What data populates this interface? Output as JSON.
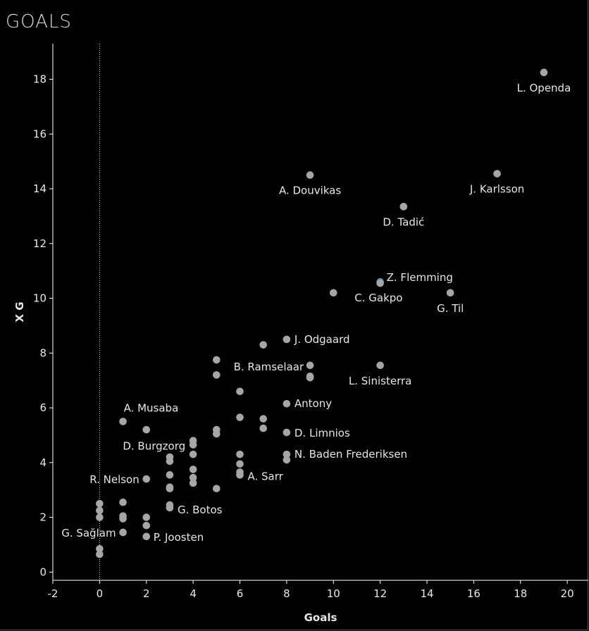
{
  "page": {
    "title": "GOALS"
  },
  "colors": {
    "background": "#000000",
    "point": "#a6a6a6",
    "highlight": "#5b86b5",
    "text": "#e6e6e6",
    "axis": "#ffffff"
  },
  "chart_data": {
    "type": "scatter",
    "title": "GOALS",
    "xlabel": "Goals",
    "ylabel": "X G",
    "xlim": [
      -2,
      20.9
    ],
    "ylim": [
      -0.3,
      19.3
    ],
    "xticks": [
      -2,
      0,
      2,
      4,
      6,
      8,
      10,
      12,
      14,
      16,
      18,
      20
    ],
    "yticks": [
      0,
      2,
      4,
      6,
      8,
      10,
      12,
      14,
      16,
      18
    ],
    "grid": false,
    "reference_line_x": 0,
    "highlighted": "Z. Flemming",
    "points": [
      {
        "x": 19,
        "y": 18.25,
        "label": "L. Openda"
      },
      {
        "x": 17,
        "y": 14.55,
        "label": "J. Karlsson"
      },
      {
        "x": 9,
        "y": 14.5,
        "label": "A. Douvikas"
      },
      {
        "x": 13,
        "y": 13.35,
        "label": "D. Tadić"
      },
      {
        "x": 12,
        "y": 10.6,
        "label": "Z. Flemming",
        "highlight": true
      },
      {
        "x": 12,
        "y": 10.55,
        "label": ""
      },
      {
        "x": 10,
        "y": 10.2,
        "label": "C. Gakpo"
      },
      {
        "x": 15,
        "y": 10.2,
        "label": "G. Til"
      },
      {
        "x": 8,
        "y": 8.5,
        "label": "J. Odgaard"
      },
      {
        "x": 7,
        "y": 8.3,
        "label": ""
      },
      {
        "x": 5,
        "y": 7.75,
        "label": ""
      },
      {
        "x": 9,
        "y": 7.55,
        "label": "B. Ramselaar"
      },
      {
        "x": 12,
        "y": 7.55,
        "label": "L. Sinisterra"
      },
      {
        "x": 5,
        "y": 7.2,
        "label": ""
      },
      {
        "x": 9,
        "y": 7.15,
        "label": ""
      },
      {
        "x": 9,
        "y": 7.1,
        "label": ""
      },
      {
        "x": 6,
        "y": 6.6,
        "label": ""
      },
      {
        "x": 8,
        "y": 6.15,
        "label": "Antony"
      },
      {
        "x": 6,
        "y": 5.65,
        "label": ""
      },
      {
        "x": 7,
        "y": 5.6,
        "label": ""
      },
      {
        "x": 1,
        "y": 5.5,
        "label": "A. Musaba"
      },
      {
        "x": 7,
        "y": 5.25,
        "label": ""
      },
      {
        "x": 2,
        "y": 5.2,
        "label": ""
      },
      {
        "x": 5,
        "y": 5.2,
        "label": ""
      },
      {
        "x": 5,
        "y": 5.05,
        "label": ""
      },
      {
        "x": 8,
        "y": 5.1,
        "label": "D. Limnios"
      },
      {
        "x": 4,
        "y": 4.8,
        "label": ""
      },
      {
        "x": 4,
        "y": 4.65,
        "label": "D. Burgzorg"
      },
      {
        "x": 6,
        "y": 4.3,
        "label": ""
      },
      {
        "x": 8,
        "y": 4.3,
        "label": "N. Baden Frederiksen"
      },
      {
        "x": 4,
        "y": 4.3,
        "label": ""
      },
      {
        "x": 3,
        "y": 4.2,
        "label": ""
      },
      {
        "x": 3,
        "y": 4.05,
        "label": ""
      },
      {
        "x": 8,
        "y": 4.1,
        "label": ""
      },
      {
        "x": 6,
        "y": 3.95,
        "label": ""
      },
      {
        "x": 4,
        "y": 3.75,
        "label": ""
      },
      {
        "x": 6,
        "y": 3.65,
        "label": ""
      },
      {
        "x": 6,
        "y": 3.55,
        "label": "A. Sarr"
      },
      {
        "x": 3,
        "y": 3.55,
        "label": ""
      },
      {
        "x": 4,
        "y": 3.45,
        "label": ""
      },
      {
        "x": 2,
        "y": 3.4,
        "label": "R. Nelson"
      },
      {
        "x": 4,
        "y": 3.25,
        "label": ""
      },
      {
        "x": 3,
        "y": 3.1,
        "label": ""
      },
      {
        "x": 3,
        "y": 3.05,
        "label": ""
      },
      {
        "x": 5,
        "y": 3.05,
        "label": ""
      },
      {
        "x": 1,
        "y": 2.55,
        "label": ""
      },
      {
        "x": 0,
        "y": 2.5,
        "label": ""
      },
      {
        "x": 3,
        "y": 2.45,
        "label": ""
      },
      {
        "x": 3,
        "y": 2.35,
        "label": "G. Botos"
      },
      {
        "x": 0,
        "y": 2.25,
        "label": ""
      },
      {
        "x": 1,
        "y": 2.05,
        "label": ""
      },
      {
        "x": 2,
        "y": 2.0,
        "label": ""
      },
      {
        "x": 0,
        "y": 2.0,
        "label": ""
      },
      {
        "x": 1,
        "y": 1.95,
        "label": ""
      },
      {
        "x": 2,
        "y": 1.7,
        "label": ""
      },
      {
        "x": 1,
        "y": 1.45,
        "label": "G. Sağlam"
      },
      {
        "x": 2,
        "y": 1.3,
        "label": "P. Joosten"
      },
      {
        "x": 0,
        "y": 0.85,
        "label": ""
      },
      {
        "x": 0,
        "y": 0.65,
        "label": ""
      }
    ]
  }
}
